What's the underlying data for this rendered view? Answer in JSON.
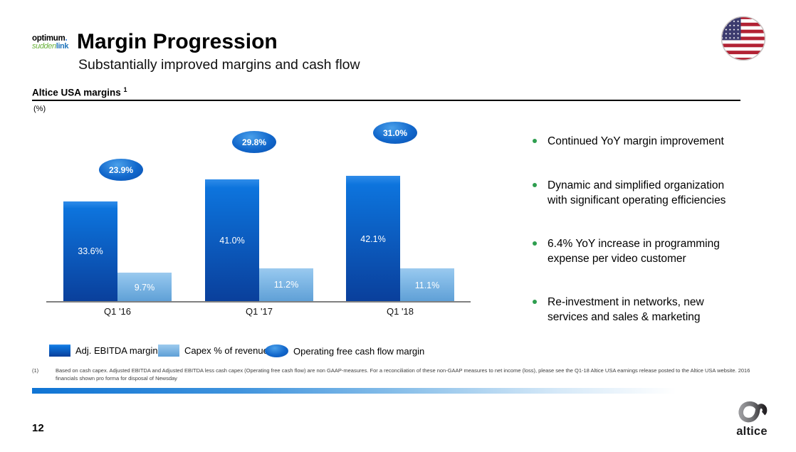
{
  "slide": {
    "title": "Margin Progression",
    "subtitle": "Substantially improved margins and cash flow",
    "page_number": "12"
  },
  "logos": {
    "optimum_text": "optimum",
    "optimum_dot": ".",
    "suddenlink_part1": "sudden",
    "suddenlink_part2": "link",
    "altice_text": "altice",
    "flag_icon": "us-flag-round-icon"
  },
  "section": {
    "heading": "Altice USA margins ",
    "heading_superscript": "1",
    "unit_label": "(%)"
  },
  "chart_data": {
    "type": "bar",
    "title": "Altice USA margins",
    "ylabel": "(%)",
    "value_suffix": "%",
    "ylim": [
      0,
      50
    ],
    "grid": false,
    "legend_position": "bottom",
    "categories": [
      "Q1 '16",
      "Q1 '17",
      "Q1 '18"
    ],
    "series": [
      {
        "name": "Adj. EBITDA margin",
        "marker": "bar",
        "values": [
          33.6,
          41.0,
          42.1
        ],
        "labels": [
          "33.6%",
          "41.0%",
          "42.1%"
        ],
        "color_top": "#0d74dd",
        "color_bottom": "#0a3f9b"
      },
      {
        "name": "Capex % of revenue",
        "marker": "bar",
        "values": [
          9.7,
          11.2,
          11.1
        ],
        "labels": [
          "9.7%",
          "11.2%",
          "11.1%"
        ],
        "color_top": "#8fc3ec",
        "color_bottom": "#5e9fd6"
      },
      {
        "name": "Operating free cash flow margin",
        "marker": "oval-callout",
        "values": [
          23.9,
          29.8,
          31.0
        ],
        "labels": [
          "23.9%",
          "29.8%",
          "31.0%"
        ],
        "color": "#1268cc"
      }
    ]
  },
  "legend": {
    "items": [
      {
        "label": "Adj. EBITDA margin"
      },
      {
        "label": "Capex % of revenue"
      },
      {
        "label": "Operating free cash flow margin"
      }
    ]
  },
  "bullets": [
    {
      "text": "Continued YoY margin improvement"
    },
    {
      "text": "Dynamic and simplified organization with significant operating efficiencies"
    },
    {
      "text": "6.4% YoY increase in programming expense per video customer"
    },
    {
      "text": "Re-investment in networks, new services and sales & marketing"
    }
  ],
  "footnote": {
    "marker": "(1)",
    "text": "Based on cash capex. Adjusted EBITDA and Adjusted EBITDA less cash capex (Operating free cash flow) are non GAAP-measures. For a reconciliation of these non-GAAP measures to net income (loss), please see the Q1-18 Altice USA earnings release posted to the Altice USA website. 2016 financials shown pro forma for disposal of Newsday"
  },
  "colors": {
    "ebitda_bar_top": "#0d74dd",
    "ebitda_bar_bottom": "#0a3f9b",
    "capex_bar_top": "#8fc3ec",
    "capex_bar_bottom": "#5e9fd6",
    "fcf_oval": "#1268cc",
    "bullet_green": "#2e9e4f",
    "accent_bar_blue": "#0f74d4"
  }
}
